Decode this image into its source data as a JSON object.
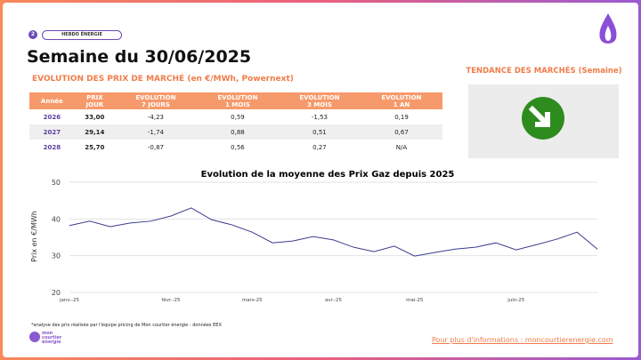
{
  "header": {
    "badge": "2",
    "tag": "HEBDO ÉNERGIE",
    "title": "Semaine du 30/06/2025"
  },
  "section_title": "EVOLUTION DES PRIX DE MARCHÉ (en €/MWh, Powernext)",
  "table": {
    "columns": [
      [
        "Année"
      ],
      [
        "PRIX",
        "JOUR"
      ],
      [
        "EVOLUTION",
        "7 JOURS"
      ],
      [
        "EVOLUTION",
        "1 MOIS"
      ],
      [
        "EVOLUTION",
        "3 MOIS"
      ],
      [
        "EVOLUTION",
        "1 AN"
      ]
    ],
    "rows": [
      [
        "2026",
        "33,00",
        "-4,23",
        "0,59",
        "-1,53",
        "0,19"
      ],
      [
        "2027",
        "29,14",
        "-1,74",
        "0,88",
        "0,51",
        "0,67"
      ],
      [
        "2028",
        "25,70",
        "-0,87",
        "0,56",
        "0,27",
        "N/A"
      ]
    ]
  },
  "trend_title": "TENDANCE DES MARCHÉS (Semaine)",
  "chart_data": {
    "type": "line",
    "title": "Evolution de la moyenne des Prix Gaz depuis 2025",
    "y_label": "Prix en €/MWh",
    "categories": [
      "janv.-25",
      null,
      null,
      null,
      null,
      "févr.-25",
      null,
      null,
      null,
      "mars-25",
      null,
      null,
      null,
      "avr.-25",
      null,
      null,
      null,
      "mai-25",
      null,
      null,
      null,
      null,
      "juin-25",
      null,
      null,
      null,
      null
    ],
    "series": [
      {
        "name": "Prix Gaz",
        "color": "#3b3b8f",
        "values": [
          38.2,
          39.4,
          37.9,
          38.9,
          39.4,
          40.8,
          43.0,
          39.8,
          38.4,
          36.4,
          33.5,
          34.0,
          35.2,
          34.3,
          32.3,
          31.1,
          32.6,
          29.9,
          30.9,
          31.8,
          32.3,
          33.5,
          31.6,
          33.0,
          34.5,
          36.4,
          31.8
        ]
      }
    ],
    "ylim": [
      20,
      50
    ],
    "yticks": [
      20,
      30,
      40,
      50
    ],
    "grid": true
  },
  "footnote": "*analyse des prix réalisée par l'équipe pricing de Mon courtier énergie -  données EEX",
  "logo": [
    "mon",
    "courtier",
    "énergie"
  ],
  "link": "Pour plus d'informations : moncourtierenergie.com"
}
